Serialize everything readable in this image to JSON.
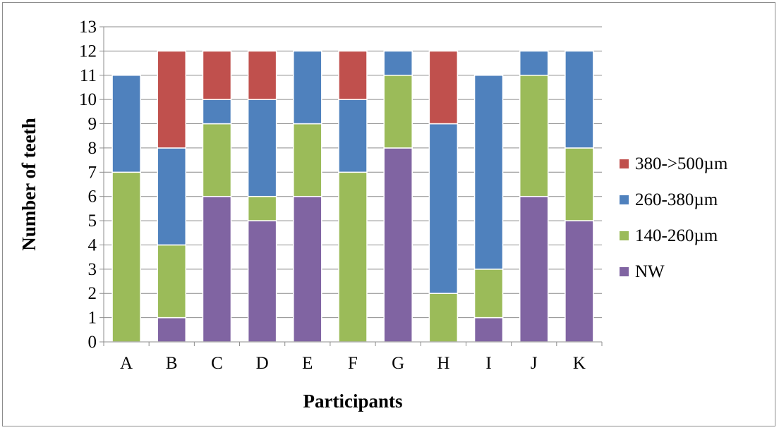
{
  "chart_data": {
    "type": "bar",
    "stacked": true,
    "title": "",
    "xlabel": "Participants",
    "ylabel": "Number of teeth",
    "ylim": [
      0,
      13
    ],
    "yticks": [
      "0",
      "1",
      "2",
      "3",
      "4",
      "5",
      "6",
      "7",
      "8",
      "9",
      "10",
      "11",
      "12",
      "13"
    ],
    "grid": true,
    "legend_position": "right",
    "categories": [
      "A",
      "B",
      "C",
      "D",
      "E",
      "F",
      "G",
      "H",
      "I",
      "J",
      "K"
    ],
    "series": [
      {
        "name": "NW",
        "color": "#8064a2",
        "values": [
          0,
          1,
          6,
          5,
          6,
          0,
          8,
          0,
          1,
          6,
          5
        ]
      },
      {
        "name": "140-260µm",
        "color": "#9bbb59",
        "values": [
          7,
          3,
          3,
          1,
          3,
          7,
          3,
          2,
          2,
          5,
          3
        ]
      },
      {
        "name": "260-380µm",
        "color": "#4f81bd",
        "values": [
          4,
          4,
          1,
          4,
          3,
          3,
          1,
          7,
          8,
          1,
          4
        ]
      },
      {
        "name": "380->500µm",
        "color": "#c0504d",
        "values": [
          0,
          4,
          2,
          2,
          0,
          2,
          0,
          3,
          0,
          0,
          0
        ]
      }
    ],
    "legend_order": [
      "380->500µm",
      "260-380µm",
      "140-260µm",
      "NW"
    ]
  }
}
